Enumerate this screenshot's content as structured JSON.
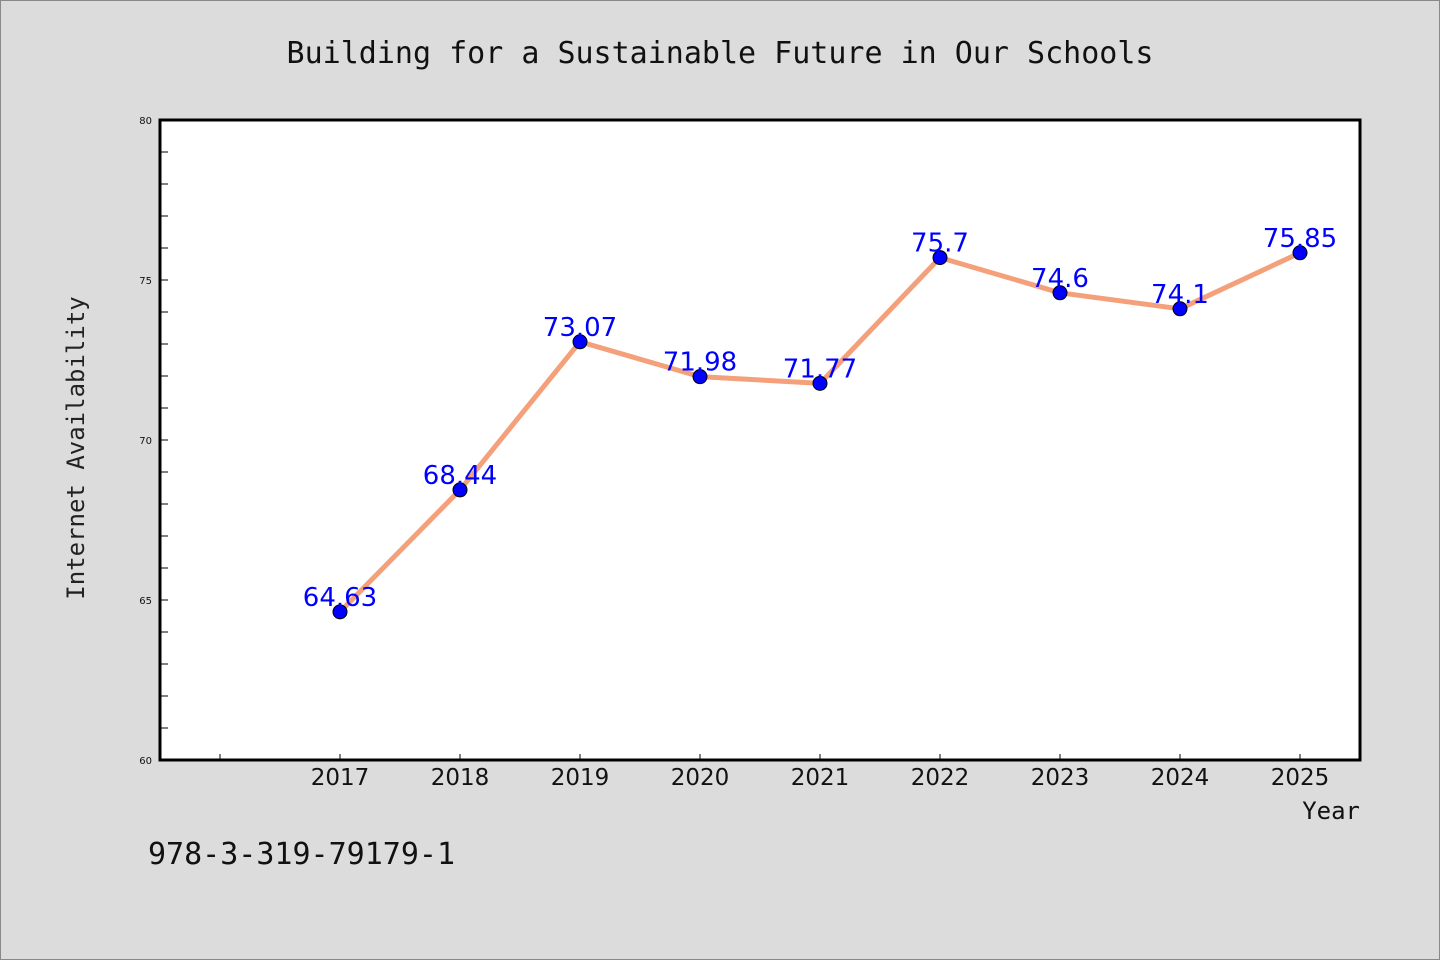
{
  "chart_data": {
    "type": "line",
    "title": "Building for a Sustainable Future in Our Schools",
    "xlabel": "Year",
    "ylabel": "Internet Availability",
    "categories": [
      "2017",
      "2018",
      "2019",
      "2020",
      "2021",
      "2022",
      "2023",
      "2024",
      "2025"
    ],
    "values": [
      64.63,
      68.44,
      73.07,
      71.98,
      71.77,
      75.7,
      74.6,
      74.1,
      75.85
    ],
    "data_labels": [
      "64.63",
      "68.44",
      "73.07",
      "71.98",
      "71.77",
      "75.7",
      "74.6",
      "74.1",
      "75.85"
    ],
    "ylim": [
      60,
      80
    ],
    "yticks": [
      "60",
      "65",
      "70",
      "75",
      "80"
    ],
    "grid": false,
    "line_color": "#f4a07a",
    "marker_color": "#0000ff"
  },
  "footer_text": "978-3-319-79179-1"
}
